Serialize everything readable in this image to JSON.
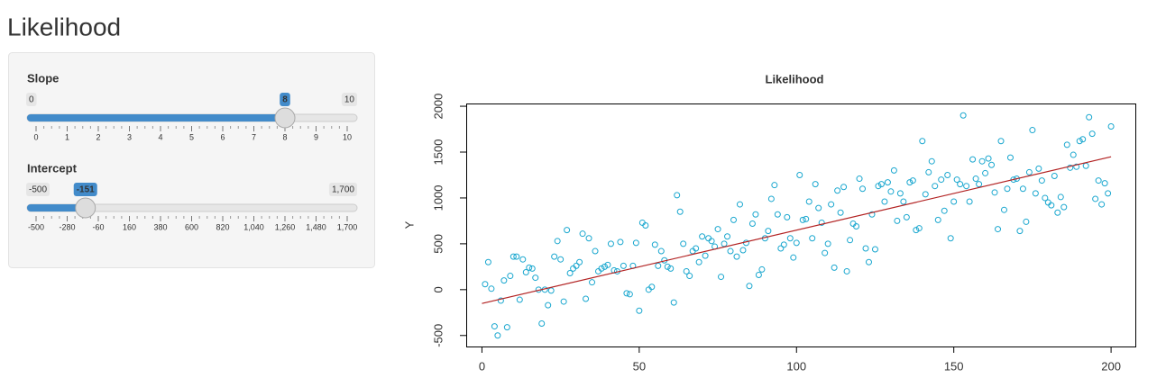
{
  "page": {
    "title": "Likelihood"
  },
  "sliders": [
    {
      "label": "Slope",
      "min": 0,
      "max": 10,
      "value": 8,
      "ticks": [
        0,
        1,
        2,
        3,
        4,
        5,
        6,
        7,
        8,
        9,
        10
      ]
    },
    {
      "label": "Intercept",
      "min": -500,
      "max": {
        "value": 1700,
        "label": "1,700"
      },
      "value": -151,
      "ticks": [
        -500,
        -280,
        -60,
        160,
        380,
        600,
        820,
        {
          "value": 1040,
          "label": "1,040"
        },
        {
          "value": 1260,
          "label": "1,260"
        },
        {
          "value": 1480,
          "label": "1,480"
        },
        {
          "value": 1700,
          "label": "1,700"
        }
      ]
    }
  ],
  "chart_data": {
    "type": "scatter",
    "title": "Likelihood",
    "y_label": "Y",
    "xlim": [
      -5,
      208
    ],
    "ylim": [
      -620,
      2030
    ],
    "xticks": [
      0,
      50,
      100,
      150,
      200
    ],
    "yticks": [
      -500,
      0,
      500,
      1000,
      1500,
      2000
    ],
    "series": [
      {
        "type": "scatter",
        "color": "#1aa7cf",
        "x": [
          1,
          2,
          3,
          4,
          5,
          6,
          7,
          8,
          9,
          10,
          11,
          12,
          13,
          14,
          15,
          16,
          17,
          18,
          19,
          20,
          21,
          22,
          23,
          24,
          25,
          26,
          27,
          28,
          29,
          30,
          31,
          32,
          33,
          34,
          35,
          36,
          37,
          38,
          39,
          40,
          41,
          42,
          43,
          44,
          45,
          46,
          47,
          48,
          49,
          50,
          51,
          52,
          53,
          54,
          55,
          56,
          57,
          58,
          59,
          60,
          61,
          62,
          63,
          64,
          65,
          66,
          67,
          68,
          69,
          70,
          71,
          72,
          73,
          74,
          75,
          76,
          77,
          78,
          79,
          80,
          81,
          82,
          83,
          84,
          85,
          86,
          87,
          88,
          89,
          90,
          91,
          92,
          93,
          94,
          95,
          96,
          97,
          98,
          99,
          100,
          101,
          102,
          103,
          104,
          105,
          106,
          107,
          108,
          109,
          110,
          111,
          112,
          113,
          114,
          115,
          116,
          117,
          118,
          119,
          120,
          121,
          122,
          123,
          124,
          125,
          126,
          127,
          128,
          129,
          130,
          131,
          132,
          133,
          134,
          135,
          136,
          137,
          138,
          139,
          140,
          141,
          142,
          143,
          144,
          145,
          146,
          147,
          148,
          149,
          150,
          151,
          152,
          153,
          154,
          155,
          156,
          157,
          158,
          159,
          160,
          161,
          162,
          163,
          164,
          165,
          166,
          167,
          168,
          169,
          170,
          171,
          172,
          173,
          174,
          175,
          176,
          177,
          178,
          179,
          180,
          181,
          182,
          183,
          184,
          185,
          186,
          187,
          188,
          189,
          190,
          191,
          192,
          193,
          194,
          195,
          196,
          197,
          198,
          199,
          200
        ],
        "values": [
          60,
          300,
          10,
          -400,
          -500,
          -120,
          100,
          -410,
          150,
          360,
          360,
          -110,
          330,
          190,
          240,
          230,
          130,
          0,
          -370,
          0,
          -170,
          -10,
          360,
          530,
          330,
          -130,
          650,
          180,
          230,
          260,
          300,
          610,
          -100,
          560,
          80,
          420,
          200,
          230,
          250,
          270,
          500,
          210,
          200,
          520,
          260,
          -40,
          -50,
          260,
          510,
          -230,
          730,
          700,
          0,
          30,
          490,
          260,
          420,
          320,
          250,
          230,
          -140,
          1030,
          850,
          500,
          200,
          150,
          420,
          450,
          300,
          580,
          370,
          560,
          530,
          470,
          660,
          140,
          500,
          580,
          420,
          760,
          360,
          930,
          430,
          510,
          40,
          720,
          820,
          160,
          220,
          560,
          640,
          990,
          1140,
          820,
          450,
          490,
          790,
          560,
          350,
          510,
          1250,
          760,
          770,
          960,
          560,
          1150,
          890,
          730,
          400,
          500,
          930,
          240,
          1080,
          840,
          1120,
          200,
          540,
          720,
          690,
          1210,
          1100,
          450,
          300,
          820,
          440,
          1130,
          1150,
          960,
          1170,
          1070,
          1300,
          750,
          1050,
          960,
          790,
          1170,
          1190,
          650,
          670,
          1620,
          1040,
          1280,
          1400,
          1130,
          760,
          1200,
          860,
          1250,
          560,
          960,
          1200,
          1150,
          1900,
          1130,
          960,
          1420,
          1210,
          1150,
          1400,
          1270,
          1430,
          1360,
          1060,
          660,
          1620,
          870,
          1100,
          1440,
          1200,
          1210,
          640,
          1100,
          740,
          1280,
          1740,
          1050,
          1320,
          1190,
          1000,
          950,
          920,
          1240,
          840,
          1010,
          900,
          1580,
          1330,
          1470,
          1340,
          1620,
          1640,
          1350,
          1880,
          1700,
          990,
          1190,
          930,
          1160,
          1050,
          1780
        ]
      },
      {
        "type": "line",
        "color": "#b22222",
        "x": [
          0,
          200
        ],
        "values": [
          -151,
          1449
        ]
      }
    ]
  }
}
